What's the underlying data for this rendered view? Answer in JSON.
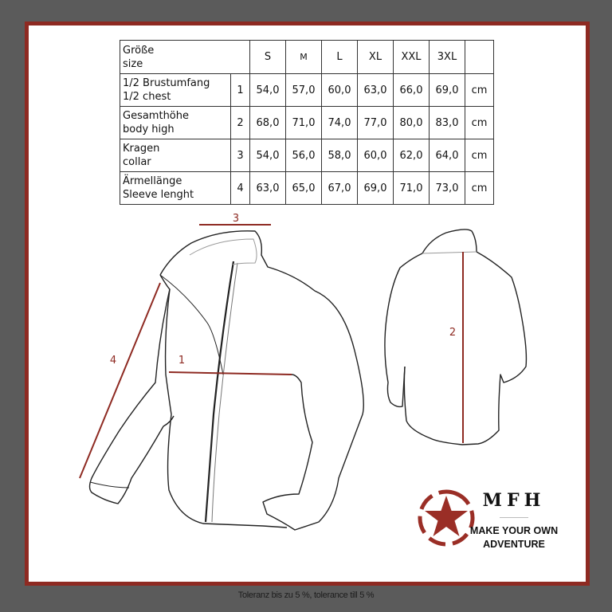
{
  "table": {
    "header": {
      "label_de": "Größe",
      "label_en": "size",
      "sizes": [
        "S",
        "M",
        "L",
        "XL",
        "XXL",
        "3XL"
      ]
    },
    "rows": [
      {
        "label_de": "1/2 Brustumfang",
        "label_en": "1/2 chest",
        "num": "1",
        "values": [
          "54,0",
          "57,0",
          "60,0",
          "63,0",
          "66,0",
          "69,0"
        ],
        "unit": "cm"
      },
      {
        "label_de": "Gesamthöhe",
        "label_en": "body high",
        "num": "2",
        "values": [
          "68,0",
          "71,0",
          "74,0",
          "77,0",
          "80,0",
          "83,0"
        ],
        "unit": "cm"
      },
      {
        "label_de": "Kragen",
        "label_en": "collar",
        "num": "3",
        "values": [
          "54,0",
          "56,0",
          "58,0",
          "60,0",
          "62,0",
          "64,0"
        ],
        "unit": "cm"
      },
      {
        "label_de": "Ärmellänge",
        "label_en": "Sleeve lenght",
        "num": "4",
        "values": [
          "63,0",
          "65,0",
          "67,0",
          "69,0",
          "71,0",
          "73,0"
        ],
        "unit": "cm"
      }
    ]
  },
  "diagram": {
    "labels": {
      "chest": "1",
      "body": "2",
      "collar": "3",
      "sleeve": "4"
    },
    "measure_color": "#8e2a22"
  },
  "brand": {
    "name": "MFH",
    "slogan_line1": "MAKE YOUR OWN",
    "slogan_line2": "ADVENTURE",
    "logo_icon": "star-in-dashed-circle-icon",
    "logo_color": "#9a2e26"
  },
  "footer": {
    "tolerance": "Toleranz bis zu 5 %, tolerance till 5 %"
  },
  "colors": {
    "background": "#5b5b5b",
    "frame": "#8e2a22",
    "panel": "#ffffff"
  }
}
